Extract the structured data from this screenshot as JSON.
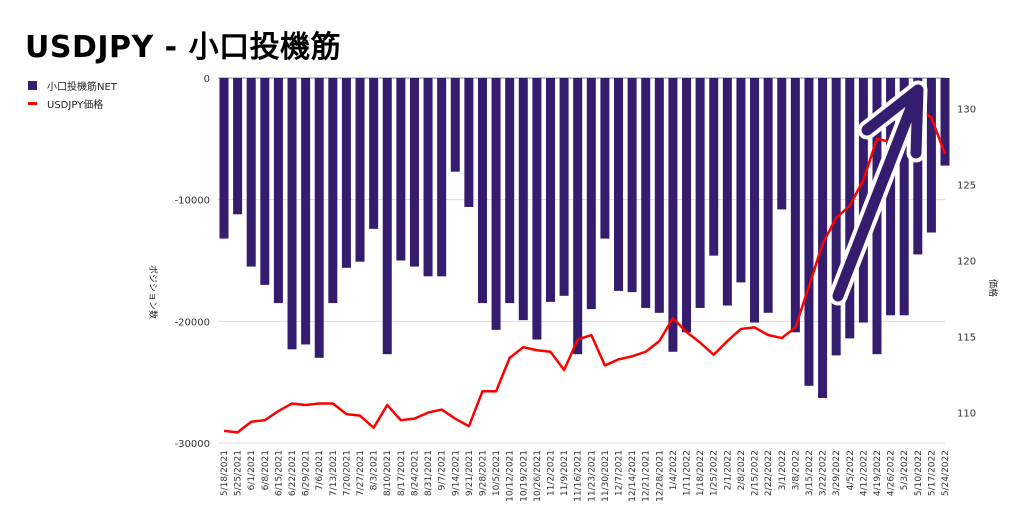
{
  "chart_data": {
    "type": "bar+line",
    "title": "USDJPY - 小口投機筋",
    "legend": [
      "小口投機筋NET",
      "USDJPY価格"
    ],
    "legend_position": "left",
    "ylabel_left": "ポジション数",
    "ylabel_right": "価格",
    "ylim_left": [
      -30000,
      0
    ],
    "yticks_left": [
      "0",
      "-10000",
      "-20000",
      "-30000"
    ],
    "ylim_right": [
      108,
      132
    ],
    "yticks_right": [
      "110",
      "115",
      "120",
      "125",
      "130"
    ],
    "grid": true,
    "colors": {
      "bar": "#341c6e",
      "line": "#ff0000"
    },
    "categories": [
      "5/18/2021",
      "5/25/2021",
      "6/1/2021",
      "6/8/2021",
      "6/15/2021",
      "6/22/2021",
      "6/29/2021",
      "7/6/2021",
      "7/13/2021",
      "7/20/2021",
      "7/27/2021",
      "8/3/2021",
      "8/10/2021",
      "8/17/2021",
      "8/24/2021",
      "8/31/2021",
      "9/7/2021",
      "9/14/2021",
      "9/21/2021",
      "9/28/2021",
      "10/5/2021",
      "10/12/2021",
      "10/19/2021",
      "10/26/2021",
      "11/2/2021",
      "11/9/2021",
      "11/16/2021",
      "11/23/2021",
      "11/30/2021",
      "12/7/2021",
      "12/14/2021",
      "12/21/2021",
      "12/28/2021",
      "1/4/2022",
      "1/11/2022",
      "1/18/2022",
      "1/25/2022",
      "2/1/2022",
      "2/8/2022",
      "2/15/2022",
      "2/22/2022",
      "3/1/2022",
      "3/8/2022",
      "3/15/2022",
      "3/22/2022",
      "3/29/2022",
      "4/5/2022",
      "4/12/2022",
      "4/19/2022",
      "4/26/2022",
      "5/3/2022",
      "5/10/2022",
      "5/17/2022",
      "5/24/2022"
    ],
    "series": [
      {
        "name": "小口投機筋NET",
        "type": "bar",
        "axis": "left",
        "values": [
          -13200,
          -11200,
          -15500,
          -17000,
          -18500,
          -22300,
          -21900,
          -23000,
          -18500,
          -15600,
          -15100,
          -12400,
          -22700,
          -15000,
          -15500,
          -16300,
          -16300,
          -7700,
          -10600,
          -18500,
          -20700,
          -18500,
          -19900,
          -21500,
          -18400,
          -17900,
          -22700,
          -19000,
          -13200,
          -17500,
          -17600,
          -18900,
          -19300,
          -22500,
          -20900,
          -18900,
          -14600,
          -18700,
          -16800,
          -20100,
          -19300,
          -10800,
          -20900,
          -25300,
          -26300,
          -22800,
          -21400,
          -20100,
          -22700,
          -19500,
          -19500,
          -14500,
          -12700,
          -7200
        ]
      },
      {
        "name": "USDJPY価格",
        "type": "line",
        "axis": "right",
        "values": [
          108.8,
          108.7,
          109.4,
          109.5,
          110.1,
          110.6,
          110.5,
          110.6,
          110.6,
          109.9,
          109.8,
          109.0,
          110.5,
          109.5,
          109.6,
          110.0,
          110.2,
          109.6,
          109.1,
          111.4,
          111.4,
          113.6,
          114.3,
          114.1,
          114.0,
          112.8,
          114.8,
          115.1,
          113.1,
          113.5,
          113.7,
          114.0,
          114.7,
          116.2,
          115.3,
          114.6,
          113.8,
          114.7,
          115.5,
          115.6,
          115.1,
          114.9,
          115.6,
          118.3,
          121.1,
          122.8,
          123.6,
          125.3,
          128.0,
          127.8,
          130.3,
          130.0,
          129.4,
          127.0
        ]
      }
    ],
    "annotations": [
      "upward-arrow"
    ]
  }
}
